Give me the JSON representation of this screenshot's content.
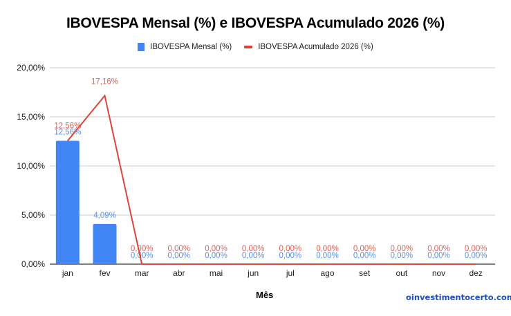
{
  "chart": {
    "title": "IBOVESPA Mensal (%) e IBOVESPA Acumulado 2026 (%)",
    "xlabel": "Mês",
    "watermark": "oinvestimentocerto.com",
    "legend": {
      "bar_label": "IBOVESPA Mensal (%)",
      "line_label": "IBOVESPA Acumulado 2026 (%)"
    },
    "colors": {
      "bar": "#4285f4",
      "line": "#db4437",
      "grid": "#cccccc",
      "axis": "#333333"
    }
  },
  "chart_data": {
    "type": "bar+line",
    "title": "IBOVESPA Mensal (%) e IBOVESPA Acumulado 2026 (%)",
    "xlabel": "Mês",
    "ylabel": "",
    "ylim": [
      0,
      20
    ],
    "yticks": [
      "0,00%",
      "5,00%",
      "10,00%",
      "15,00%",
      "20,00%"
    ],
    "grid": true,
    "legend_position": "top",
    "categories": [
      "jan",
      "fev",
      "mar",
      "abr",
      "mai",
      "jun",
      "jul",
      "ago",
      "set",
      "out",
      "nov",
      "dez"
    ],
    "series": [
      {
        "name": "IBOVESPA Mensal (%)",
        "type": "bar",
        "color": "#4285f4",
        "values": [
          12.56,
          4.09,
          0,
          0,
          0,
          0,
          0,
          0,
          0,
          0,
          0,
          0
        ],
        "labels": [
          "12,56%",
          "4,09%",
          "0,00%",
          "0,00%",
          "0,00%",
          "0,00%",
          "0,00%",
          "0,00%",
          "0,00%",
          "0,00%",
          "0,00%",
          "0,00%"
        ]
      },
      {
        "name": "IBOVESPA Acumulado 2026 (%)",
        "type": "line",
        "color": "#db4437",
        "values": [
          12.56,
          17.16,
          0,
          0,
          0,
          0,
          0,
          0,
          0,
          0,
          0,
          0
        ],
        "labels": [
          "12,56%",
          "17,16%",
          "0,00%",
          "0,00%",
          "0,00%",
          "0,00%",
          "0,00%",
          "0,00%",
          "0,00%",
          "0,00%",
          "0,00%",
          "0,00%"
        ]
      }
    ]
  }
}
